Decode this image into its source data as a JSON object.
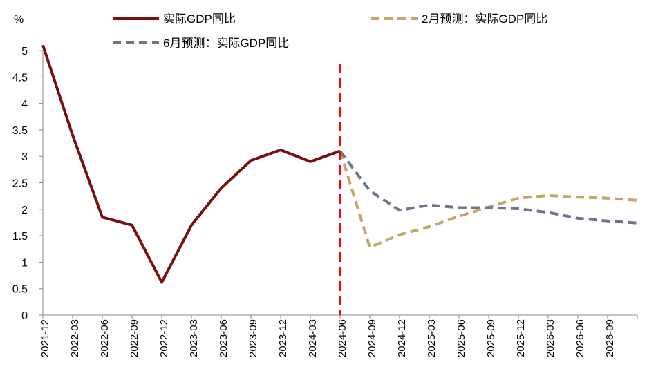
{
  "chart_data": {
    "type": "line",
    "y_unit": "%",
    "ylim": [
      0,
      5
    ],
    "yticks": [
      "0",
      "0.5",
      "1",
      "1.5",
      "2",
      "2.5",
      "3",
      "3.5",
      "4",
      "4.5",
      "5"
    ],
    "categories": [
      "2021-12",
      "2022-03",
      "2022-06",
      "2022-09",
      "2022-12",
      "2023-03",
      "2023-06",
      "2023-09",
      "2023-12",
      "2024-03",
      "2024-06",
      "2024-09",
      "2024-12",
      "2025-03",
      "2025-06",
      "2025-09",
      "2025-12",
      "2026-03",
      "2026-06",
      "2026-09"
    ],
    "grid": false,
    "legend_position": "top",
    "marker_line": {
      "at": "2024-06",
      "color": "#ff0000",
      "style": "dashed"
    },
    "series": [
      {
        "name": "实际GDP同比",
        "color": "#7b0f0f",
        "style": "solid",
        "x": [
          "2021-12",
          "2022-03",
          "2022-06",
          "2022-09",
          "2022-12",
          "2023-03",
          "2023-06",
          "2023-09",
          "2023-12",
          "2024-03",
          "2024-06"
        ],
        "values": [
          5.1,
          3.4,
          1.85,
          1.7,
          0.62,
          1.7,
          2.4,
          2.92,
          3.12,
          2.9,
          3.1
        ]
      },
      {
        "name": "2月预测：实际GDP同比",
        "color": "#c4a467",
        "style": "dashed",
        "x": [
          "2024-06",
          "2024-09",
          "2024-12",
          "2025-03",
          "2025-06",
          "2025-09",
          "2025-12",
          "2026-03",
          "2026-06",
          "2026-09",
          "2026-12"
        ],
        "values": [
          3.1,
          1.28,
          1.52,
          1.67,
          1.87,
          2.04,
          2.21,
          2.26,
          2.23,
          2.21,
          2.17
        ]
      },
      {
        "name": "6月预测：实际GDP同比",
        "color": "#6b7590",
        "style": "dashed",
        "x": [
          "2024-06",
          "2024-09",
          "2024-12",
          "2025-03",
          "2025-06",
          "2025-09",
          "2025-12",
          "2026-03",
          "2026-06",
          "2026-09",
          "2026-12"
        ],
        "values": [
          3.1,
          2.35,
          1.98,
          2.08,
          2.03,
          2.03,
          2.01,
          1.94,
          1.83,
          1.78,
          1.74
        ]
      }
    ]
  }
}
